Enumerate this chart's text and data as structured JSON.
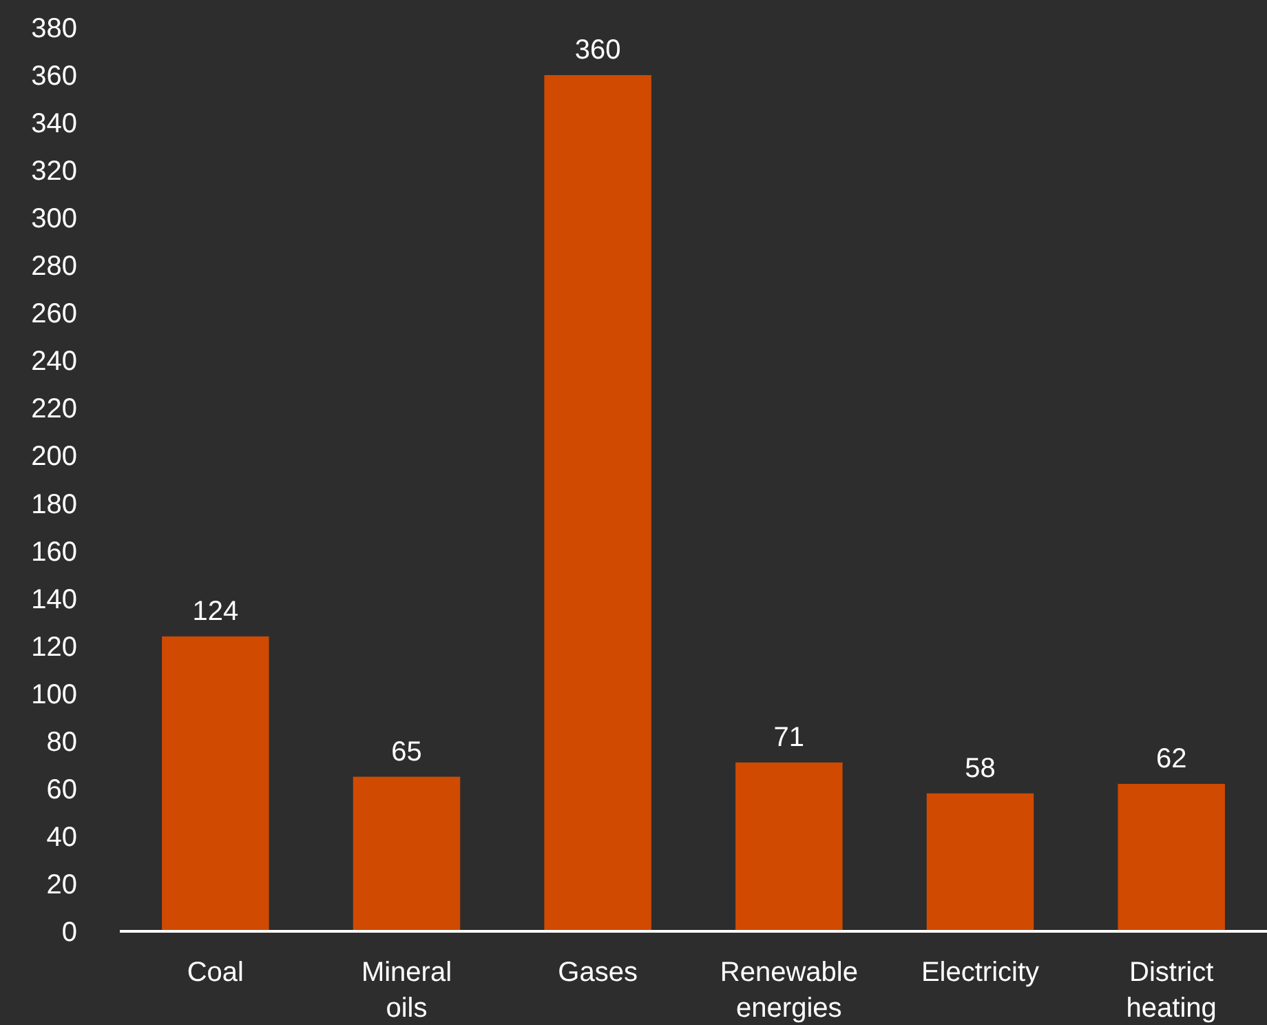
{
  "chart_data": {
    "type": "bar",
    "categories": [
      "Coal",
      "Mineral oils",
      "Gases",
      "Renewable energies",
      "Electricity",
      "District heating"
    ],
    "values": [
      124,
      65,
      360,
      71,
      58,
      62
    ],
    "color": "#d04a02",
    "ylim": [
      0,
      380
    ],
    "yticks": [
      0,
      20,
      40,
      60,
      80,
      100,
      120,
      140,
      160,
      180,
      200,
      220,
      240,
      260,
      280,
      300,
      320,
      340,
      360,
      380
    ],
    "grid": false,
    "data_labels": true
  }
}
